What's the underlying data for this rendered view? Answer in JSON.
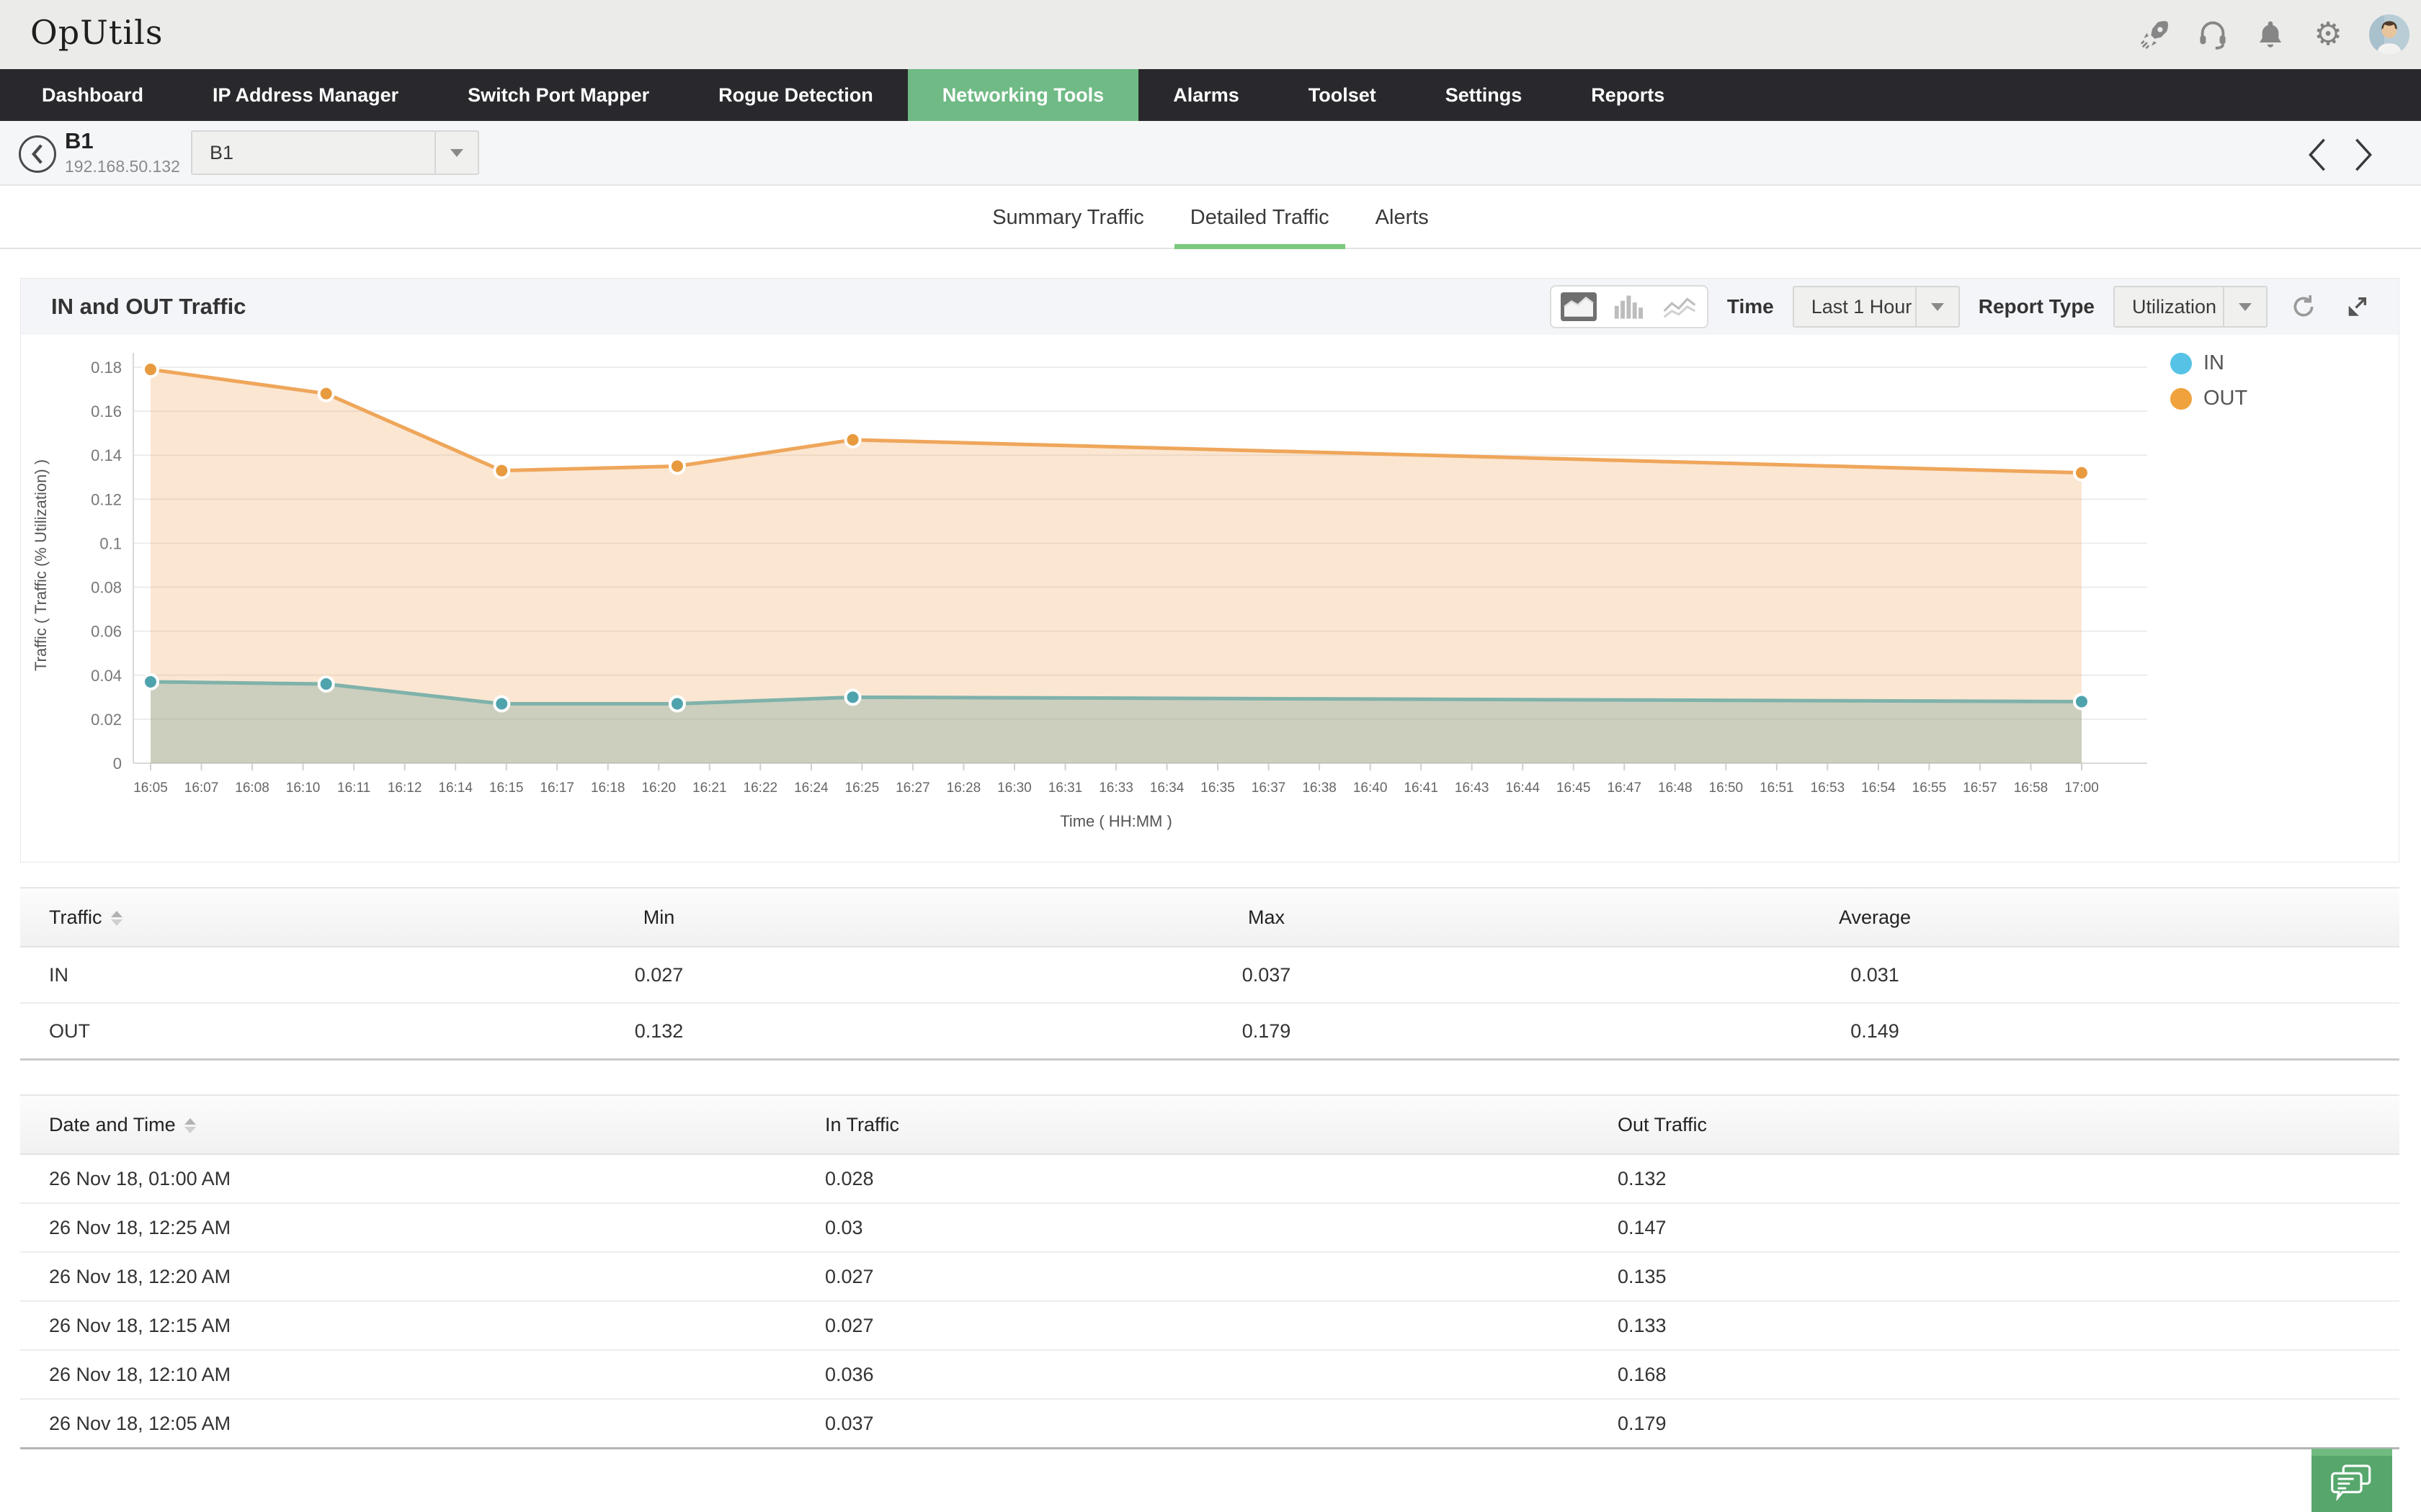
{
  "topbar": {
    "logo": "OpUtils",
    "gear_glyph": "⚙"
  },
  "nav": {
    "items": [
      {
        "label": "Dashboard",
        "active": false
      },
      {
        "label": "IP Address Manager",
        "active": false
      },
      {
        "label": "Switch Port Mapper",
        "active": false
      },
      {
        "label": "Rogue Detection",
        "active": false
      },
      {
        "label": "Networking Tools",
        "active": true
      },
      {
        "label": "Alarms",
        "active": false
      },
      {
        "label": "Toolset",
        "active": false
      },
      {
        "label": "Settings",
        "active": false
      },
      {
        "label": "Reports",
        "active": false
      }
    ]
  },
  "breadcrumb": {
    "device_name": "B1",
    "device_ip": "192.168.50.132",
    "selector_value": "B1"
  },
  "tabs": {
    "items": [
      {
        "label": "Summary Traffic",
        "active": false
      },
      {
        "label": "Detailed Traffic",
        "active": true
      },
      {
        "label": "Alerts",
        "active": false
      }
    ]
  },
  "chart_section": {
    "title": "IN and OUT Traffic",
    "time_label": "Time",
    "time_value": "Last 1 Hour",
    "report_type_label": "Report Type",
    "report_type_value": "Utilization"
  },
  "chart_data": {
    "type": "area",
    "title": "IN and OUT Traffic",
    "xlabel": "Time ( HH:MM )",
    "ylabel": "Traffic ( Traffic (% Utilization) )",
    "ylim": [
      0,
      0.18
    ],
    "ytick_step": 0.02,
    "grid": true,
    "legend_position": "right-top",
    "x_ticks": [
      "16:05",
      "16:07",
      "16:08",
      "16:10",
      "16:11",
      "16:12",
      "16:14",
      "16:15",
      "16:17",
      "16:18",
      "16:20",
      "16:21",
      "16:22",
      "16:24",
      "16:25",
      "16:27",
      "16:28",
      "16:30",
      "16:31",
      "16:33",
      "16:34",
      "16:35",
      "16:37",
      "16:38",
      "16:40",
      "16:41",
      "16:43",
      "16:44",
      "16:45",
      "16:47",
      "16:48",
      "16:50",
      "16:51",
      "16:53",
      "16:54",
      "16:55",
      "16:57",
      "16:58",
      "17:00"
    ],
    "series": [
      {
        "name": "OUT",
        "line_color": "#efa65a",
        "fill_color": "rgba(242,167,94,0.28)",
        "marker_color": "#e89a3e",
        "points": [
          [
            "16:05",
            0.179
          ],
          [
            "16:10",
            0.168
          ],
          [
            "16:15",
            0.133
          ],
          [
            "16:20",
            0.135
          ],
          [
            "16:25",
            0.147
          ],
          [
            "17:00",
            0.132
          ]
        ]
      },
      {
        "name": "IN",
        "line_color": "#7fb2aa",
        "fill_color": "rgba(106,160,150,0.32)",
        "marker_color": "#4fa3ad",
        "points": [
          [
            "16:05",
            0.037
          ],
          [
            "16:10",
            0.036
          ],
          [
            "16:15",
            0.027
          ],
          [
            "16:20",
            0.027
          ],
          [
            "16:25",
            0.03
          ],
          [
            "17:00",
            0.028
          ]
        ]
      }
    ],
    "legend": [
      {
        "label": "IN",
        "color": "#56c3e6"
      },
      {
        "label": "OUT",
        "color": "#f0a23c"
      }
    ]
  },
  "summary_table": {
    "headers": [
      "Traffic",
      "Min",
      "Max",
      "Average"
    ],
    "rows": [
      [
        "IN",
        "0.027",
        "0.037",
        "0.031"
      ],
      [
        "OUT",
        "0.132",
        "0.179",
        "0.149"
      ]
    ]
  },
  "detail_table": {
    "headers": [
      "Date and Time",
      "In Traffic",
      "Out Traffic"
    ],
    "rows": [
      [
        "26 Nov 18, 01:00 AM",
        "0.028",
        "0.132"
      ],
      [
        "26 Nov 18, 12:25 AM",
        "0.03",
        "0.147"
      ],
      [
        "26 Nov 18, 12:20 AM",
        "0.027",
        "0.135"
      ],
      [
        "26 Nov 18, 12:15 AM",
        "0.027",
        "0.133"
      ],
      [
        "26 Nov 18, 12:10 AM",
        "0.036",
        "0.168"
      ],
      [
        "26 Nov 18, 12:05 AM",
        "0.037",
        "0.179"
      ]
    ]
  },
  "colors": {
    "nav_active": "#6fba85",
    "tab_underline": "#7cc87d",
    "chat_button": "#57a76d"
  }
}
